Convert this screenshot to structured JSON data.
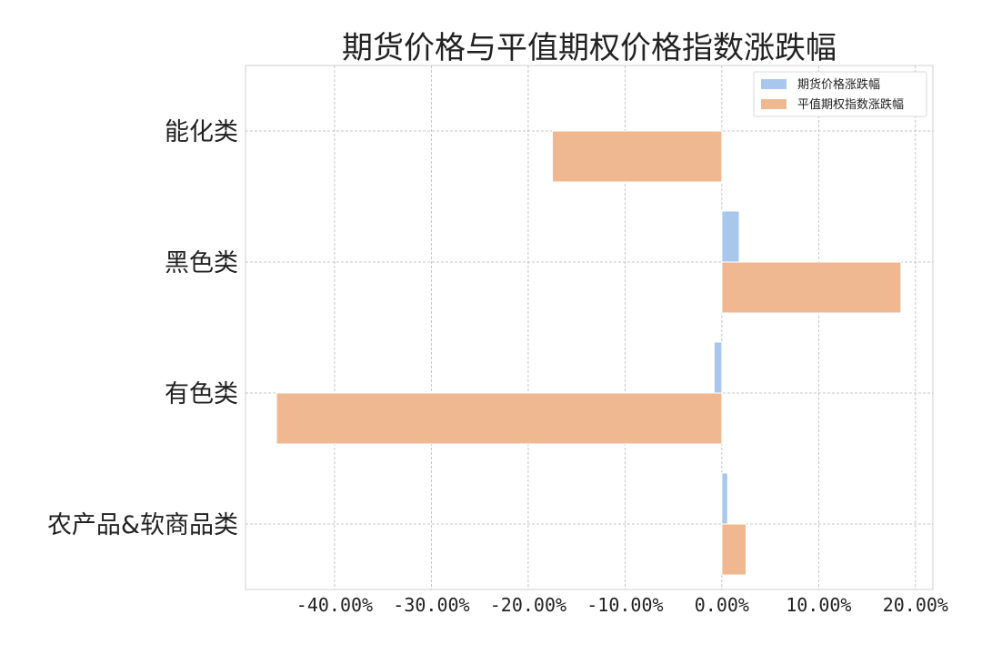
{
  "chart_data": {
    "type": "bar",
    "orientation": "horizontal",
    "title": "期货价格与平值期权价格指数涨跌幅",
    "xlabel": "",
    "ylabel": "",
    "categories": [
      "能化类",
      "黑色类",
      "有色类",
      "农产品&软商品类"
    ],
    "series": [
      {
        "name": "期货价格涨跌幅",
        "values": [
          0.0,
          1.8,
          -0.8,
          0.6
        ],
        "color": "#a9c7ec"
      },
      {
        "name": "平值期权指数涨跌幅",
        "values": [
          -17.5,
          18.5,
          -46.0,
          2.5
        ],
        "color": "#f0b890"
      }
    ],
    "xlim": [
      -49.2,
      21.8
    ],
    "xticks": [
      -40,
      -30,
      -20,
      -10,
      0,
      10,
      20
    ],
    "xtick_labels": [
      "-40.00%",
      "-30.00%",
      "-20.00%",
      "-10.00%",
      "0.00%",
      "10.00%",
      "20.00%"
    ],
    "grid": true,
    "legend_position": "top-right"
  }
}
